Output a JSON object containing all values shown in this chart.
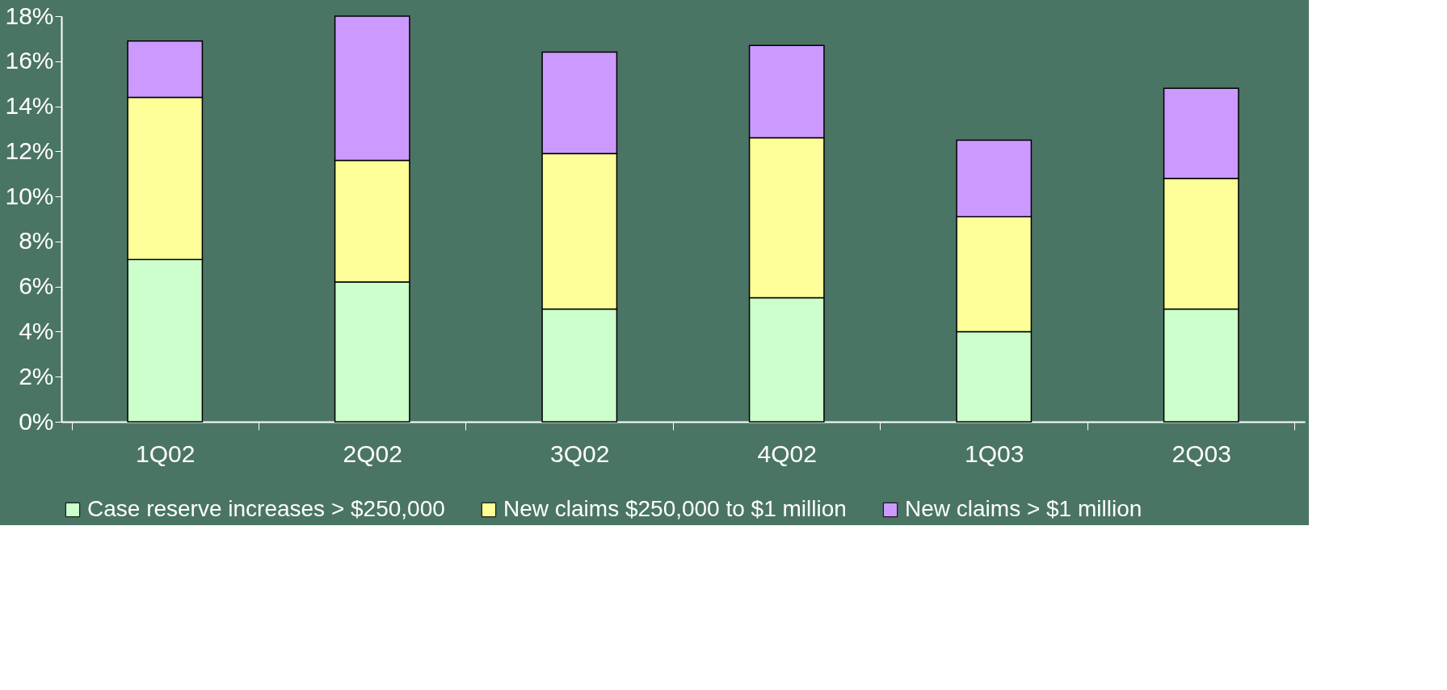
{
  "chart_data": {
    "type": "bar",
    "stacked": true,
    "categories": [
      "1Q02",
      "2Q02",
      "3Q02",
      "4Q02",
      "1Q03",
      "2Q03"
    ],
    "series": [
      {
        "name": "Case reserve increases > $250,000",
        "color": "#ccffcc",
        "values": [
          7.2,
          6.2,
          5.0,
          5.5,
          4.0,
          5.0
        ]
      },
      {
        "name": "New claims $250,000 to $1 million",
        "color": "#ffff99",
        "values": [
          7.2,
          5.4,
          6.9,
          7.1,
          5.1,
          5.8
        ]
      },
      {
        "name": "New claims > $1 million",
        "color": "#cc99ff",
        "values": [
          2.5,
          6.4,
          4.5,
          4.1,
          3.4,
          4.0
        ]
      }
    ],
    "ylim": [
      0,
      18
    ],
    "yticks": [
      {
        "value": 0,
        "label": "0%"
      },
      {
        "value": 2,
        "label": "2%"
      },
      {
        "value": 4,
        "label": "4%"
      },
      {
        "value": 6,
        "label": "6%"
      },
      {
        "value": 8,
        "label": "8%"
      },
      {
        "value": 10,
        "label": "10%"
      },
      {
        "value": 12,
        "label": "12%"
      },
      {
        "value": 14,
        "label": "14%"
      },
      {
        "value": 16,
        "label": "16%"
      },
      {
        "value": 18,
        "label": "18%"
      }
    ],
    "grid": false,
    "legend": "bottom"
  }
}
